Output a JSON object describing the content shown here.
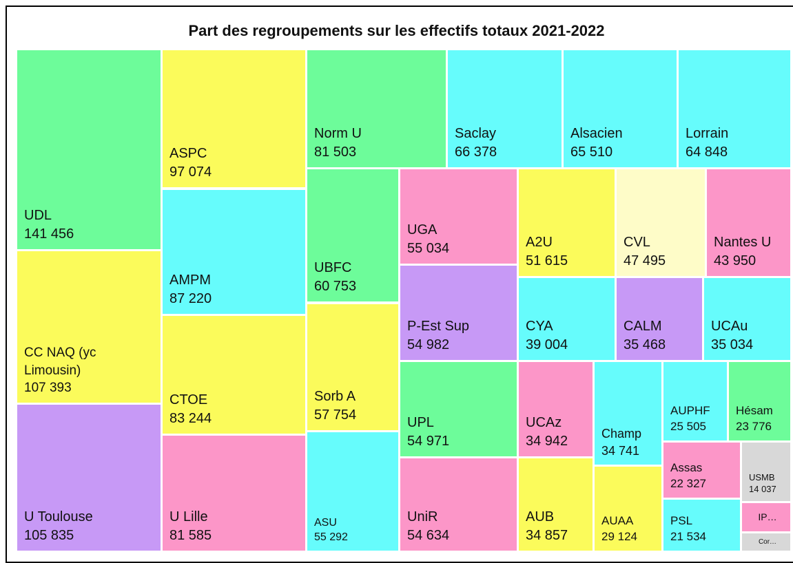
{
  "chart_data": {
    "type": "treemap",
    "title": "Part des regroupements sur les effectifs totaux 2021-2022",
    "categories": [
      "UDL",
      "CC NAQ (yc Limousin)",
      "U Toulouse",
      "ASPC",
      "AMPM",
      "CTOE",
      "U Lille",
      "Norm U",
      "UBFC",
      "Sorb A",
      "ASU",
      "Saclay",
      "Alsacien",
      "Lorrain",
      "UGA",
      "P-Est Sup",
      "UPL",
      "UniR",
      "A2U",
      "CVL",
      "Nantes U",
      "CYA",
      "CALM",
      "UCAu",
      "UCAz",
      "AUB",
      "Champ",
      "AUAA",
      "AUPHF",
      "Hésam",
      "Assas",
      "PSL",
      "USMB",
      "IP…",
      "Cor…"
    ],
    "values": [
      141456,
      107393,
      105835,
      97074,
      87220,
      83244,
      81585,
      81503,
      60753,
      57754,
      55292,
      66378,
      65510,
      64848,
      55034,
      54982,
      54971,
      54634,
      51615,
      47495,
      43950,
      39004,
      35468,
      35034,
      34942,
      34857,
      34741,
      29124,
      25505,
      23776,
      22327,
      21534,
      14037,
      6800,
      4100
    ],
    "value_labels": [
      "141 456",
      "107 393",
      "105 835",
      "97 074",
      "87 220",
      "83 244",
      "81 585",
      "81 503",
      "60 753",
      "57 754",
      "55 292",
      "66 378",
      "65 510",
      "64 848",
      "55 034",
      "54 982",
      "54 971",
      "54 634",
      "51 615",
      "47 495",
      "43 950",
      "39 004",
      "35 468",
      "35 034",
      "34 942",
      "34 857",
      "34 741",
      "29 124",
      "25 505",
      "23 776",
      "22 327",
      "21 534",
      "14 037",
      null,
      null
    ],
    "colors": [
      "#6dfc9a",
      "#fbfb5b",
      "#c799f6",
      "#fbfb5b",
      "#66fcfc",
      "#fbfb5b",
      "#fc96c8",
      "#6dfc9a",
      "#6dfc9a",
      "#fbfb5b",
      "#66fcfc",
      "#66fcfc",
      "#66fcfc",
      "#66fcfc",
      "#fc96c8",
      "#c799f6",
      "#6dfc9a",
      "#fc96c8",
      "#fbfb5b",
      "#fefcc8",
      "#fc96c8",
      "#66fcfc",
      "#c799f6",
      "#66fcfc",
      "#fc96c8",
      "#fbfb5b",
      "#66fcfc",
      "#fbfb5b",
      "#66fcfc",
      "#6dfc9a",
      "#fc96c8",
      "#66fcfc",
      "#d8d8d8",
      "#fc96c8",
      "#d8d8d8"
    ]
  }
}
